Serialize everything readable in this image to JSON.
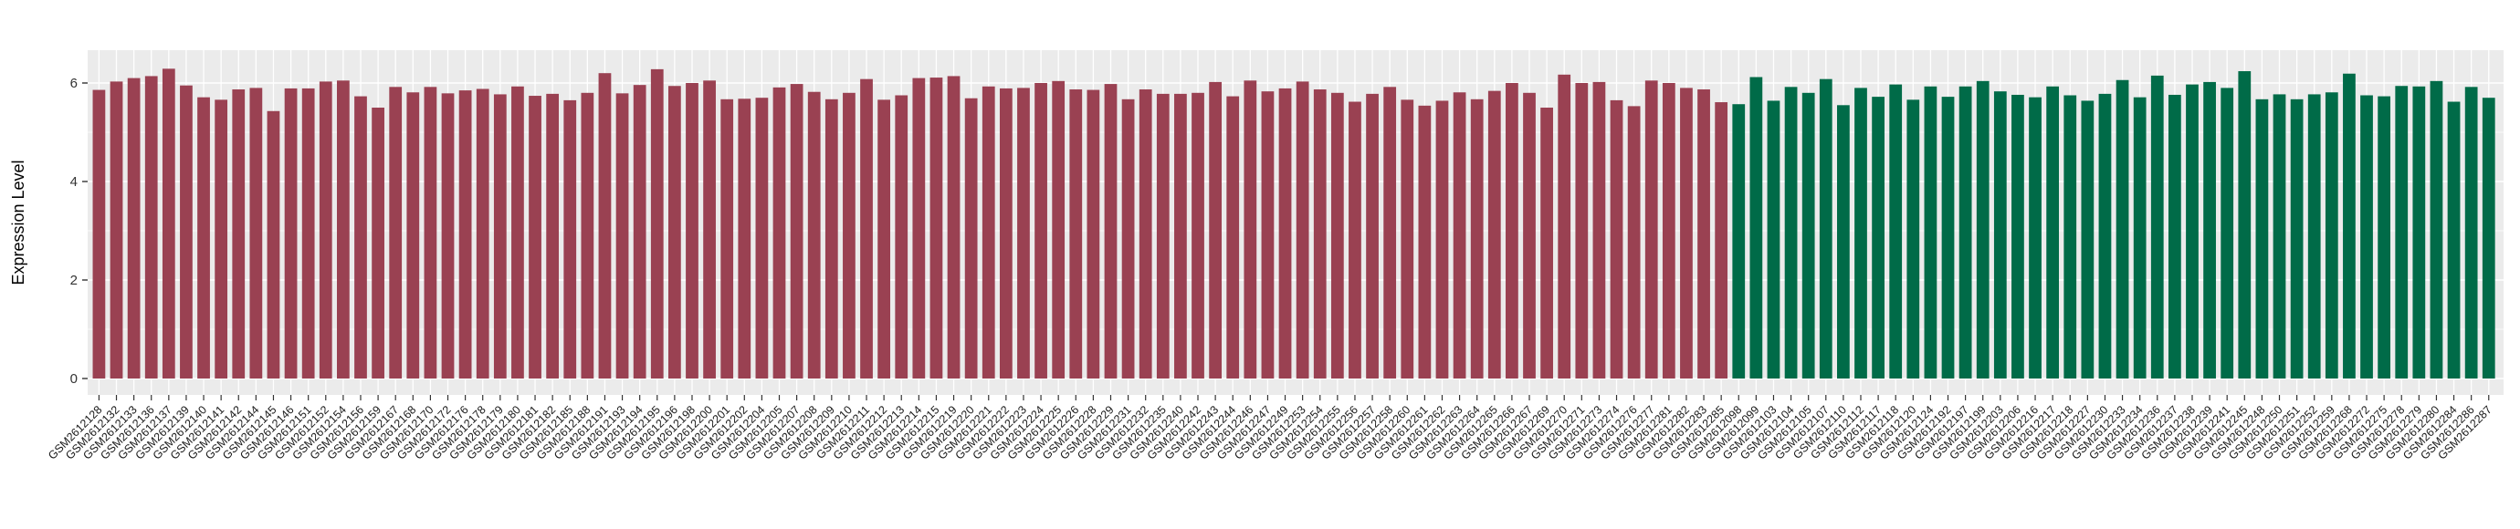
{
  "chart_data": {
    "type": "bar",
    "title": "",
    "xlabel": "",
    "ylabel": "Expression Level",
    "ylim": [
      0,
      6.67
    ],
    "yticks": [
      0,
      2,
      4,
      6
    ],
    "yticks_minor": [
      1,
      3,
      5
    ],
    "grid": "white-major-and-minor-on-gray-panel",
    "legend": "none",
    "group_split_index": 94,
    "colors": {
      "group1_bar": "#9a4152",
      "group2_bar": "#006b48",
      "panel_bg": "#ebebeb",
      "gridline": "#ffffff",
      "tick_mark": "#333333"
    },
    "categories": [
      "GSM2612128",
      "GSM2612132",
      "GSM2612133",
      "GSM2612136",
      "GSM2612137",
      "GSM2612139",
      "GSM2612140",
      "GSM2612141",
      "GSM2612142",
      "GSM2612144",
      "GSM2612145",
      "GSM2612146",
      "GSM2612151",
      "GSM2612152",
      "GSM2612154",
      "GSM2612156",
      "GSM2612159",
      "GSM2612167",
      "GSM2612168",
      "GSM2612170",
      "GSM2612172",
      "GSM2612176",
      "GSM2612178",
      "GSM2612179",
      "GSM2612180",
      "GSM2612181",
      "GSM2612182",
      "GSM2612185",
      "GSM2612188",
      "GSM2612191",
      "GSM2612193",
      "GSM2612194",
      "GSM2612195",
      "GSM2612196",
      "GSM2612198",
      "GSM2612200",
      "GSM2612201",
      "GSM2612202",
      "GSM2612204",
      "GSM2612205",
      "GSM2612207",
      "GSM2612208",
      "GSM2612209",
      "GSM2612210",
      "GSM2612211",
      "GSM2612212",
      "GSM2612213",
      "GSM2612214",
      "GSM2612215",
      "GSM2612219",
      "GSM2612220",
      "GSM2612221",
      "GSM2612222",
      "GSM2612223",
      "GSM2612224",
      "GSM2612225",
      "GSM2612226",
      "GSM2612228",
      "GSM2612229",
      "GSM2612231",
      "GSM2612232",
      "GSM2612235",
      "GSM2612240",
      "GSM2612242",
      "GSM2612243",
      "GSM2612244",
      "GSM2612246",
      "GSM2612247",
      "GSM2612249",
      "GSM2612253",
      "GSM2612254",
      "GSM2612255",
      "GSM2612256",
      "GSM2612257",
      "GSM2612258",
      "GSM2612260",
      "GSM2612261",
      "GSM2612262",
      "GSM2612263",
      "GSM2612264",
      "GSM2612265",
      "GSM2612266",
      "GSM2612267",
      "GSM2612269",
      "GSM2612270",
      "GSM2612271",
      "GSM2612273",
      "GSM2612274",
      "GSM2612276",
      "GSM2612277",
      "GSM2612281",
      "GSM2612282",
      "GSM2612283",
      "GSM2612285",
      "GSM2612098",
      "GSM2612099",
      "GSM2612103",
      "GSM2612104",
      "GSM2612105",
      "GSM2612107",
      "GSM2612110",
      "GSM2612112",
      "GSM2612117",
      "GSM2612118",
      "GSM2612120",
      "GSM2612124",
      "GSM2612192",
      "GSM2612197",
      "GSM2612199",
      "GSM2612203",
      "GSM2612206",
      "GSM2612216",
      "GSM2612217",
      "GSM2612218",
      "GSM2612227",
      "GSM2612230",
      "GSM2612233",
      "GSM2612234",
      "GSM2612236",
      "GSM2612237",
      "GSM2612238",
      "GSM2612239",
      "GSM2612241",
      "GSM2612245",
      "GSM2612248",
      "GSM2612250",
      "GSM2612251",
      "GSM2612252",
      "GSM2612259",
      "GSM2612268",
      "GSM2612272",
      "GSM2612275",
      "GSM2612278",
      "GSM2612279",
      "GSM2612280",
      "GSM2612284",
      "GSM2612286",
      "GSM2612287"
    ],
    "values": [
      5.86,
      6.03,
      6.1,
      6.14,
      6.29,
      5.95,
      5.71,
      5.66,
      5.87,
      5.9,
      5.43,
      5.89,
      5.89,
      6.03,
      6.05,
      5.73,
      5.5,
      5.92,
      5.81,
      5.92,
      5.79,
      5.85,
      5.88,
      5.77,
      5.93,
      5.74,
      5.78,
      5.65,
      5.8,
      6.2,
      5.79,
      5.96,
      6.28,
      5.94,
      6.0,
      6.05,
      5.67,
      5.68,
      5.7,
      5.91,
      5.98,
      5.82,
      5.67,
      5.8,
      6.08,
      5.66,
      5.75,
      6.1,
      6.11,
      6.14,
      5.69,
      5.93,
      5.89,
      5.9,
      6.0,
      6.04,
      5.87,
      5.86,
      5.98,
      5.67,
      5.87,
      5.78,
      5.78,
      5.8,
      6.02,
      5.73,
      6.05,
      5.83,
      5.89,
      6.03,
      5.87,
      5.8,
      5.62,
      5.78,
      5.92,
      5.66,
      5.54,
      5.64,
      5.81,
      5.67,
      5.84,
      6.0,
      5.8,
      5.5,
      6.17,
      6.0,
      6.02,
      5.65,
      5.53,
      6.05,
      6.0,
      5.9,
      5.87,
      5.61,
      5.57,
      6.12,
      5.64,
      5.92,
      5.8,
      6.08,
      5.55,
      5.9,
      5.72,
      5.97,
      5.66,
      5.93,
      5.72,
      5.93,
      6.04,
      5.83,
      5.76,
      5.71,
      5.93,
      5.75,
      5.64,
      5.78,
      6.06,
      5.71,
      6.15,
      5.76,
      5.97,
      6.02,
      5.9,
      6.24,
      5.67,
      5.77,
      5.67,
      5.77,
      5.81,
      6.19,
      5.75,
      5.73,
      5.94,
      5.93,
      6.04,
      5.62,
      5.92,
      5.7
    ]
  }
}
